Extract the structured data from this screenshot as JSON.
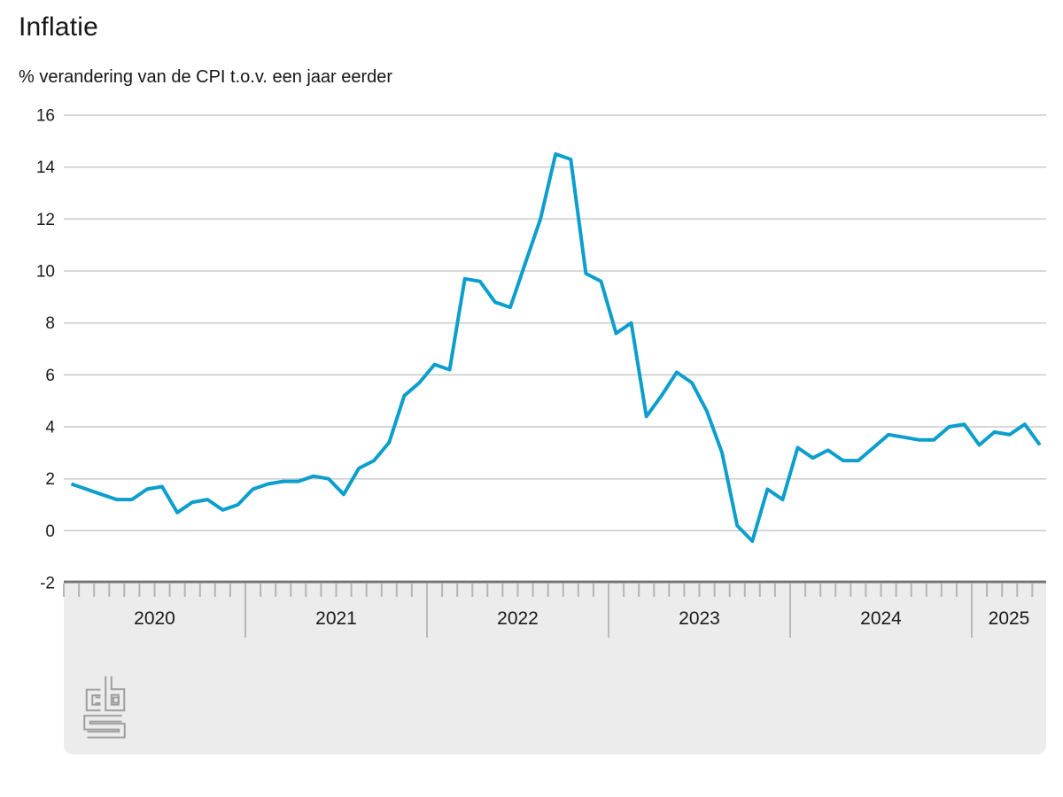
{
  "page": {
    "title": "Inflatie",
    "subtitle": "% verandering van de CPI t.o.v. een jaar eerder"
  },
  "chart_data": {
    "type": "line",
    "title": "Inflatie",
    "subtitle": "% verandering van de CPI t.o.v. een jaar eerder",
    "unit": "%",
    "frequency": "monthly",
    "x_start": "2020-01",
    "x_end": "2025-05",
    "months": [
      "2020-01",
      "2020-02",
      "2020-03",
      "2020-04",
      "2020-05",
      "2020-06",
      "2020-07",
      "2020-08",
      "2020-09",
      "2020-10",
      "2020-11",
      "2020-12",
      "2021-01",
      "2021-02",
      "2021-03",
      "2021-04",
      "2021-05",
      "2021-06",
      "2021-07",
      "2021-08",
      "2021-09",
      "2021-10",
      "2021-11",
      "2021-12",
      "2022-01",
      "2022-02",
      "2022-03",
      "2022-04",
      "2022-05",
      "2022-06",
      "2022-07",
      "2022-08",
      "2022-09",
      "2022-10",
      "2022-11",
      "2022-12",
      "2023-01",
      "2023-02",
      "2023-03",
      "2023-04",
      "2023-05",
      "2023-06",
      "2023-07",
      "2023-08",
      "2023-09",
      "2023-10",
      "2023-11",
      "2023-12",
      "2024-01",
      "2024-02",
      "2024-03",
      "2024-04",
      "2024-05",
      "2024-06",
      "2024-07",
      "2024-08",
      "2024-09",
      "2024-10",
      "2024-11",
      "2024-12",
      "2025-01",
      "2025-02",
      "2025-03",
      "2025-04",
      "2025-05"
    ],
    "values": [
      1.8,
      1.6,
      1.4,
      1.2,
      1.2,
      1.6,
      1.7,
      0.7,
      1.1,
      1.2,
      0.8,
      1.0,
      1.6,
      1.8,
      1.9,
      1.9,
      2.1,
      2.0,
      1.4,
      2.4,
      2.7,
      3.4,
      5.2,
      5.7,
      6.4,
      6.2,
      9.7,
      9.6,
      8.8,
      8.6,
      10.3,
      12.0,
      14.5,
      14.3,
      9.9,
      9.6,
      7.6,
      8.0,
      4.4,
      5.2,
      6.1,
      5.7,
      4.6,
      3.0,
      0.2,
      -0.4,
      1.6,
      1.2,
      3.2,
      2.8,
      3.1,
      2.7,
      2.7,
      3.2,
      3.7,
      3.6,
      3.5,
      3.5,
      4.0,
      4.1,
      3.3,
      3.8,
      3.7,
      4.1,
      3.3
    ],
    "year_labels": [
      "2020",
      "2021",
      "2022",
      "2023",
      "2024",
      "2025"
    ],
    "y_ticks": [
      16,
      14,
      12,
      10,
      8,
      6,
      4,
      2,
      0,
      -2
    ],
    "ylim": [
      -2,
      16
    ],
    "grid": "horizontal",
    "legend": "none",
    "line_color": "#0c9ecd",
    "colors": {
      "gridline": "#cbcbcb",
      "text": "#1a1a1a",
      "axis_band": "#ececec",
      "axis_border": "#747474",
      "tick": "#b5b5b5",
      "year_divider": "#ababab",
      "logo": "#9e9e9e"
    },
    "source_logo": "cbs-logo"
  }
}
